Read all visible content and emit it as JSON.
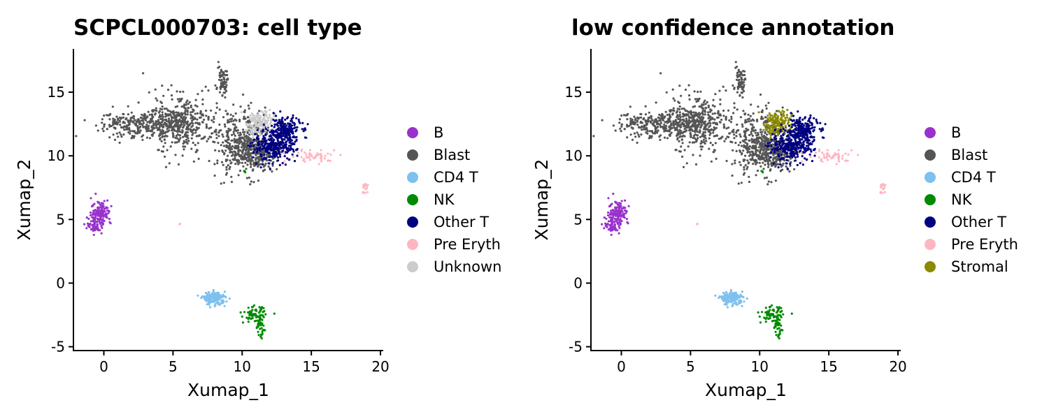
{
  "chart_data": [
    {
      "type": "scatter",
      "title": "SCPCL000703: cell type",
      "xlabel": "Xumap_1",
      "ylabel": "Xumap_2",
      "xlim": [
        -2.2,
        20.2
      ],
      "ylim": [
        -5.3,
        18.4
      ],
      "xticks": [
        0,
        5,
        10,
        15,
        20
      ],
      "xtick_labels": [
        "0",
        "5",
        "10",
        "15",
        "20"
      ],
      "yticks": [
        -5,
        0,
        5,
        10,
        15
      ],
      "ytick_labels": [
        "-5",
        "0",
        "5",
        "10",
        "15"
      ],
      "grid": false,
      "legend_position": "right",
      "series": [
        {
          "name": "B",
          "color": "#9932CC"
        },
        {
          "name": "Blast",
          "color": "#555555"
        },
        {
          "name": "CD4 T",
          "color": "#7EC0EE"
        },
        {
          "name": "NK",
          "color": "#008B00"
        },
        {
          "name": "Other T",
          "color": "#000080"
        },
        {
          "name": "Pre Eryth",
          "color": "#FFB6C1"
        },
        {
          "name": "Unknown",
          "color": "#CCCCCC"
        }
      ],
      "clusters": [
        {
          "series": "Blast",
          "x": 2.5,
          "y": 12.4,
          "sx": 1.5,
          "sy": 0.5,
          "n": 260
        },
        {
          "series": "Blast",
          "x": 5.4,
          "y": 12.6,
          "sx": 1.1,
          "sy": 1.1,
          "n": 420
        },
        {
          "series": "Blast",
          "x": 8.6,
          "y": 15.9,
          "sx": 0.18,
          "sy": 0.6,
          "n": 70
        },
        {
          "series": "Blast",
          "x": 10.0,
          "y": 11.0,
          "sx": 1.0,
          "sy": 1.2,
          "n": 420
        },
        {
          "series": "Blast",
          "x": 11.3,
          "y": 10.2,
          "sx": 0.8,
          "sy": 0.6,
          "n": 160
        },
        {
          "series": "Unknown",
          "x": 11.3,
          "y": 12.6,
          "sx": 0.5,
          "sy": 0.5,
          "n": 150
        },
        {
          "series": "Other T",
          "x": 13.0,
          "y": 12.0,
          "sx": 0.6,
          "sy": 0.5,
          "n": 220
        },
        {
          "series": "Other T",
          "x": 12.3,
          "y": 10.6,
          "sx": 0.8,
          "sy": 0.5,
          "n": 260
        },
        {
          "series": "Pre Eryth",
          "x": 15.2,
          "y": 10.0,
          "sx": 0.9,
          "sy": 0.25,
          "n": 50
        },
        {
          "series": "Pre Eryth",
          "x": 18.9,
          "y": 7.4,
          "sx": 0.15,
          "sy": 0.3,
          "n": 16
        },
        {
          "series": "Pre Eryth",
          "x": 5.5,
          "y": 4.6,
          "sx": 0.04,
          "sy": 0.05,
          "n": 3
        },
        {
          "series": "B",
          "x": -0.2,
          "y": 5.6,
          "sx": 0.35,
          "sy": 0.5,
          "n": 120
        },
        {
          "series": "B",
          "x": -0.6,
          "y": 4.6,
          "sx": 0.3,
          "sy": 0.35,
          "n": 60
        },
        {
          "series": "CD4 T",
          "x": 8.0,
          "y": -1.2,
          "sx": 0.4,
          "sy": 0.25,
          "n": 160
        },
        {
          "series": "NK",
          "x": 10.9,
          "y": -2.5,
          "sx": 0.4,
          "sy": 0.3,
          "n": 70
        },
        {
          "series": "NK",
          "x": 11.3,
          "y": -3.3,
          "sx": 0.15,
          "sy": 0.5,
          "n": 40
        },
        {
          "series": "NK",
          "x": 10.2,
          "y": 8.8,
          "sx": 0.05,
          "sy": 0.05,
          "n": 3
        }
      ]
    },
    {
      "type": "scatter",
      "title": "low confidence annotation",
      "xlabel": "Xumap_1",
      "ylabel": "Xumap_2",
      "xlim": [
        -2.2,
        20.2
      ],
      "ylim": [
        -5.3,
        18.4
      ],
      "xticks": [
        0,
        5,
        10,
        15,
        20
      ],
      "xtick_labels": [
        "0",
        "5",
        "10",
        "15",
        "20"
      ],
      "yticks": [
        -5,
        0,
        5,
        10,
        15
      ],
      "ytick_labels": [
        "-5",
        "0",
        "5",
        "10",
        "15"
      ],
      "grid": false,
      "legend_position": "right",
      "series": [
        {
          "name": "B",
          "color": "#9932CC"
        },
        {
          "name": "Blast",
          "color": "#555555"
        },
        {
          "name": "CD4 T",
          "color": "#7EC0EE"
        },
        {
          "name": "NK",
          "color": "#008B00"
        },
        {
          "name": "Other T",
          "color": "#000080"
        },
        {
          "name": "Pre Eryth",
          "color": "#FFB6C1"
        },
        {
          "name": "Stromal",
          "color": "#8B8B00"
        }
      ],
      "clusters": [
        {
          "series": "Blast",
          "x": 2.5,
          "y": 12.4,
          "sx": 1.5,
          "sy": 0.5,
          "n": 260
        },
        {
          "series": "Blast",
          "x": 5.4,
          "y": 12.6,
          "sx": 1.1,
          "sy": 1.1,
          "n": 420
        },
        {
          "series": "Blast",
          "x": 8.6,
          "y": 15.9,
          "sx": 0.18,
          "sy": 0.6,
          "n": 70
        },
        {
          "series": "Blast",
          "x": 10.0,
          "y": 11.0,
          "sx": 1.0,
          "sy": 1.2,
          "n": 420
        },
        {
          "series": "Blast",
          "x": 11.3,
          "y": 10.2,
          "sx": 0.8,
          "sy": 0.6,
          "n": 160
        },
        {
          "series": "Stromal",
          "x": 11.3,
          "y": 12.6,
          "sx": 0.5,
          "sy": 0.5,
          "n": 150
        },
        {
          "series": "Other T",
          "x": 13.0,
          "y": 12.0,
          "sx": 0.6,
          "sy": 0.5,
          "n": 220
        },
        {
          "series": "Other T",
          "x": 12.3,
          "y": 10.6,
          "sx": 0.8,
          "sy": 0.5,
          "n": 260
        },
        {
          "series": "Pre Eryth",
          "x": 15.2,
          "y": 10.0,
          "sx": 0.9,
          "sy": 0.25,
          "n": 50
        },
        {
          "series": "Pre Eryth",
          "x": 18.9,
          "y": 7.4,
          "sx": 0.15,
          "sy": 0.3,
          "n": 16
        },
        {
          "series": "Pre Eryth",
          "x": 5.5,
          "y": 4.6,
          "sx": 0.04,
          "sy": 0.05,
          "n": 3
        },
        {
          "series": "B",
          "x": -0.2,
          "y": 5.6,
          "sx": 0.35,
          "sy": 0.5,
          "n": 120
        },
        {
          "series": "B",
          "x": -0.6,
          "y": 4.6,
          "sx": 0.3,
          "sy": 0.35,
          "n": 60
        },
        {
          "series": "CD4 T",
          "x": 8.0,
          "y": -1.2,
          "sx": 0.4,
          "sy": 0.25,
          "n": 160
        },
        {
          "series": "NK",
          "x": 10.9,
          "y": -2.5,
          "sx": 0.4,
          "sy": 0.3,
          "n": 70
        },
        {
          "series": "NK",
          "x": 11.3,
          "y": -3.3,
          "sx": 0.15,
          "sy": 0.5,
          "n": 40
        },
        {
          "series": "NK",
          "x": 10.2,
          "y": 8.8,
          "sx": 0.05,
          "sy": 0.05,
          "n": 3
        }
      ]
    }
  ]
}
